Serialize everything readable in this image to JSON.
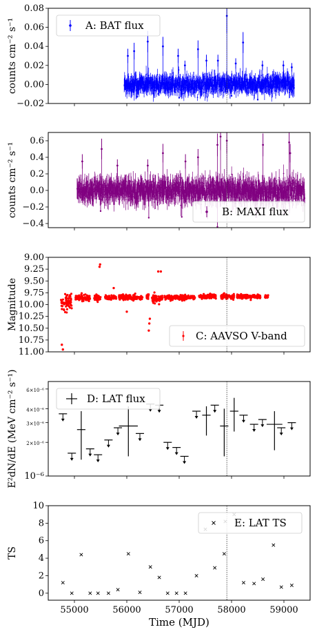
{
  "chart_data": [
    {
      "type": "scatter",
      "panel": "A",
      "ylabel": "counts cm^-2 s^-1",
      "ylabel_html": "counts cm⁻² s⁻¹",
      "ylim": [
        -0.02,
        0.08
      ],
      "yticks": [
        "−0.02",
        "0.00",
        "0.02",
        "0.04",
        "0.06",
        "0.08"
      ],
      "ytick_values": [
        -0.02,
        0.0,
        0.02,
        0.04,
        0.06,
        0.08
      ],
      "xlim": [
        54500,
        59500
      ],
      "color": "#0000ff",
      "legend": "A: BAT flux",
      "legend_position": "top-left",
      "series_range": [
        55950,
        59200
      ],
      "spread": 0.004,
      "spikes": [
        [
          56140,
          0.035
        ],
        [
          56400,
          0.045
        ],
        [
          56980,
          0.03
        ],
        [
          57110,
          0.02
        ],
        [
          57360,
          0.037
        ],
        [
          57520,
          0.025
        ],
        [
          57740,
          0.025
        ],
        [
          57910,
          0.072
        ],
        [
          58080,
          0.022
        ],
        [
          58220,
          0.044
        ],
        [
          58590,
          0.02
        ],
        [
          58990,
          0.02
        ],
        [
          59150,
          0.018
        ],
        [
          56020,
          0.03
        ],
        [
          56690,
          0.04
        ]
      ],
      "dips": [
        [
          56200,
          -0.013
        ],
        [
          57000,
          -0.014
        ],
        [
          58000,
          -0.012
        ],
        [
          58500,
          -0.016
        ],
        [
          56600,
          -0.01
        ]
      ]
    },
    {
      "type": "scatter",
      "panel": "B",
      "ylabel": "counts cm^-2 s^-1",
      "ylabel_html": "counts cm⁻² s⁻¹",
      "ylim": [
        -0.45,
        0.7
      ],
      "yticks": [
        "−0.4",
        "−0.2",
        "0.0",
        "0.2",
        "0.4",
        "0.6"
      ],
      "ytick_values": [
        -0.4,
        -0.2,
        0.0,
        0.2,
        0.4,
        0.6
      ],
      "xlim": [
        54500,
        59500
      ],
      "color": "#800080",
      "legend": "B: MAXI flux",
      "legend_position": "bottom-right",
      "series_range": [
        55050,
        59400
      ],
      "spread": 0.06,
      "spikes": [
        [
          55150,
          0.35
        ],
        [
          55520,
          0.5
        ],
        [
          55820,
          0.3
        ],
        [
          56400,
          0.3
        ],
        [
          56690,
          0.45
        ],
        [
          57120,
          0.35
        ],
        [
          57360,
          0.4
        ],
        [
          57730,
          0.55
        ],
        [
          57790,
          0.65
        ],
        [
          57910,
          0.6
        ],
        [
          58600,
          0.55
        ],
        [
          59100,
          0.58
        ],
        [
          59120,
          0.45
        ]
      ],
      "dips": [
        [
          55500,
          -0.25
        ],
        [
          56420,
          -0.33
        ],
        [
          57050,
          -0.32
        ],
        [
          57730,
          -0.44
        ],
        [
          58470,
          -0.32
        ],
        [
          59000,
          -0.28
        ]
      ]
    },
    {
      "type": "scatter",
      "panel": "C",
      "ylabel": "Magnitude",
      "ylim": [
        11.0,
        9.0
      ],
      "inverted": true,
      "yticks": [
        "9.00",
        "9.25",
        "9.50",
        "9.75",
        "10.00",
        "10.25",
        "10.50",
        "10.75",
        "11.00"
      ],
      "ytick_values": [
        9.0,
        9.25,
        9.5,
        9.75,
        10.0,
        10.25,
        10.5,
        10.75,
        11.0
      ],
      "xlim": [
        54500,
        59500
      ],
      "color": "#ff0000",
      "legend": "C: AAVSO V-band",
      "legend_position": "bottom-right",
      "clusters": [
        [
          54740,
          54950,
          9.95,
          0.2
        ],
        [
          55020,
          55300,
          9.85,
          0.06
        ],
        [
          55370,
          55500,
          9.85,
          0.06
        ],
        [
          55580,
          55800,
          9.85,
          0.05
        ],
        [
          55850,
          56300,
          9.85,
          0.05
        ],
        [
          56380,
          56420,
          9.85,
          0.05
        ],
        [
          56480,
          56680,
          9.88,
          0.08
        ],
        [
          56720,
          57300,
          9.85,
          0.05
        ],
        [
          57380,
          57700,
          9.83,
          0.04
        ],
        [
          57800,
          58050,
          9.83,
          0.05
        ],
        [
          58100,
          58550,
          9.83,
          0.04
        ],
        [
          58640,
          58700,
          9.83,
          0.04
        ]
      ],
      "outliers": [
        [
          54760,
          10.85
        ],
        [
          54780,
          10.95
        ],
        [
          55490,
          9.15
        ],
        [
          55480,
          9.2
        ],
        [
          56650,
          9.3
        ],
        [
          56600,
          9.3
        ],
        [
          56440,
          10.3
        ],
        [
          56430,
          10.4
        ],
        [
          56420,
          10.55
        ],
        [
          56000,
          10.15
        ],
        [
          55750,
          9.65
        ]
      ]
    },
    {
      "type": "scatter",
      "panel": "D",
      "ylabel": "E^2 dN/dE (MeV cm^-2 s^-1)",
      "ylabel_html": "E²dN/dE (MeV cm⁻² s⁻¹)",
      "yscale": "log",
      "ylim": [
        1e-06,
        7e-06
      ],
      "yticks": [
        "10⁻⁶",
        "2×10⁻⁶",
        "3×10⁻⁶",
        "4×10⁻⁶",
        "6×10⁻⁶"
      ],
      "ytick_values": [
        1e-06,
        2e-06,
        3e-06,
        4e-06,
        6e-06
      ],
      "xlim": [
        54500,
        59500
      ],
      "color": "#000000",
      "legend": "D: LAT flux",
      "legend_position": "top-left",
      "upper_limits": [
        [
          54780,
          3.6e-06
        ],
        [
          54950,
          1.6e-06
        ],
        [
          55300,
          1.75e-06
        ],
        [
          55450,
          1.55e-06
        ],
        [
          55650,
          2.1e-06
        ],
        [
          55830,
          2.7e-06
        ],
        [
          56250,
          2.4e-06
        ],
        [
          56450,
          4.4e-06
        ],
        [
          56620,
          4.3e-06
        ],
        [
          56780,
          2e-06
        ],
        [
          56950,
          1.8e-06
        ],
        [
          57100,
          1.5e-06
        ],
        [
          57330,
          3.8e-06
        ],
        [
          57680,
          4.3e-06
        ],
        [
          58230,
          3.5e-06
        ],
        [
          58430,
          2.9e-06
        ],
        [
          58590,
          3.2e-06
        ],
        [
          58950,
          2.7e-06
        ],
        [
          59150,
          3e-06
        ]
      ],
      "points": [
        [
          55130,
          2.6e-06,
          1.4e-06,
          3.8e-06,
          80
        ],
        [
          56030,
          2.8e-06,
          1.5e-06,
          4.2e-06,
          180
        ],
        [
          57520,
          3.5e-06,
          2.3e-06,
          4.2e-06,
          80
        ],
        [
          57860,
          2.8e-06,
          1.5e-06,
          4e-06,
          80
        ],
        [
          58050,
          3.8e-06,
          2.5e-06,
          5e-06,
          80
        ],
        [
          58820,
          2.9e-06,
          1.7e-06,
          3.8e-06,
          150
        ]
      ]
    },
    {
      "type": "scatter",
      "panel": "E",
      "ylabel": "TS",
      "xlabel": "Time (MJD)",
      "ylim": [
        -0.8,
        10
      ],
      "yticks": [
        "0",
        "2",
        "4",
        "6",
        "8",
        "10"
      ],
      "ytick_values": [
        0,
        2,
        4,
        6,
        8,
        10
      ],
      "xlim": [
        54500,
        59500
      ],
      "xticks": [
        "55000",
        "56000",
        "57000",
        "58000",
        "59000"
      ],
      "xtick_values": [
        55000,
        56000,
        57000,
        58000,
        59000
      ],
      "color": "#000000",
      "marker": "x",
      "legend": "E: LAT TS",
      "legend_position": "top-right",
      "x": [
        54780,
        54950,
        55130,
        55300,
        55450,
        55650,
        55830,
        56030,
        56250,
        56450,
        56620,
        56780,
        56950,
        57120,
        57330,
        57500,
        57680,
        57860,
        57880,
        58050,
        58230,
        58430,
        58600,
        58800,
        58950,
        59150
      ],
      "y": [
        1.2,
        0.0,
        4.4,
        0.0,
        0.0,
        0.0,
        0.4,
        4.5,
        0.1,
        3.0,
        1.8,
        0.0,
        0.0,
        0.0,
        2.0,
        7.3,
        2.9,
        4.5,
        8.2,
        9.0,
        1.2,
        1.1,
        1.6,
        5.5,
        0.7,
        0.9
      ]
    }
  ],
  "vline_mjd": 57910
}
